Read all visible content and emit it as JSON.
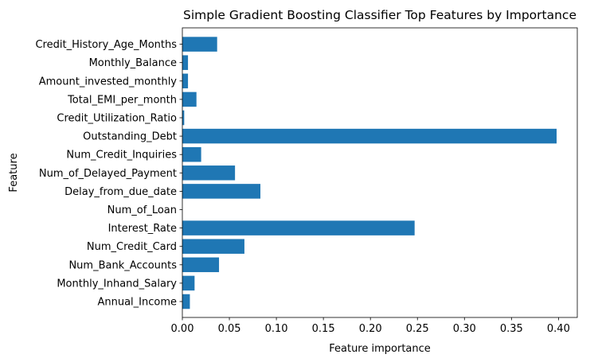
{
  "chart_data": {
    "type": "bar",
    "orientation": "horizontal",
    "title": "Simple Gradient Boosting Classifier Top Features by Importance",
    "xlabel": "Feature importance",
    "ylabel": "Feature",
    "xlim": [
      0,
      0.42
    ],
    "xticks": [
      0.0,
      0.05,
      0.1,
      0.15,
      0.2,
      0.25,
      0.3,
      0.35,
      0.4
    ],
    "xtick_labels": [
      "0.00",
      "0.05",
      "0.10",
      "0.15",
      "0.20",
      "0.25",
      "0.30",
      "0.35",
      "0.40"
    ],
    "grid": false,
    "bar_color": "#1f77b4",
    "categories": [
      "Annual_Income",
      "Monthly_Inhand_Salary",
      "Num_Bank_Accounts",
      "Num_Credit_Card",
      "Interest_Rate",
      "Num_of_Loan",
      "Delay_from_due_date",
      "Num_of_Delayed_Payment",
      "Num_Credit_Inquiries",
      "Outstanding_Debt",
      "Credit_Utilization_Ratio",
      "Total_EMI_per_month",
      "Amount_invested_monthly",
      "Monthly_Balance",
      "Credit_History_Age_Months"
    ],
    "values": [
      0.008,
      0.013,
      0.039,
      0.066,
      0.247,
      0.0,
      0.083,
      0.056,
      0.02,
      0.398,
      0.002,
      0.015,
      0.006,
      0.006,
      0.037
    ]
  }
}
